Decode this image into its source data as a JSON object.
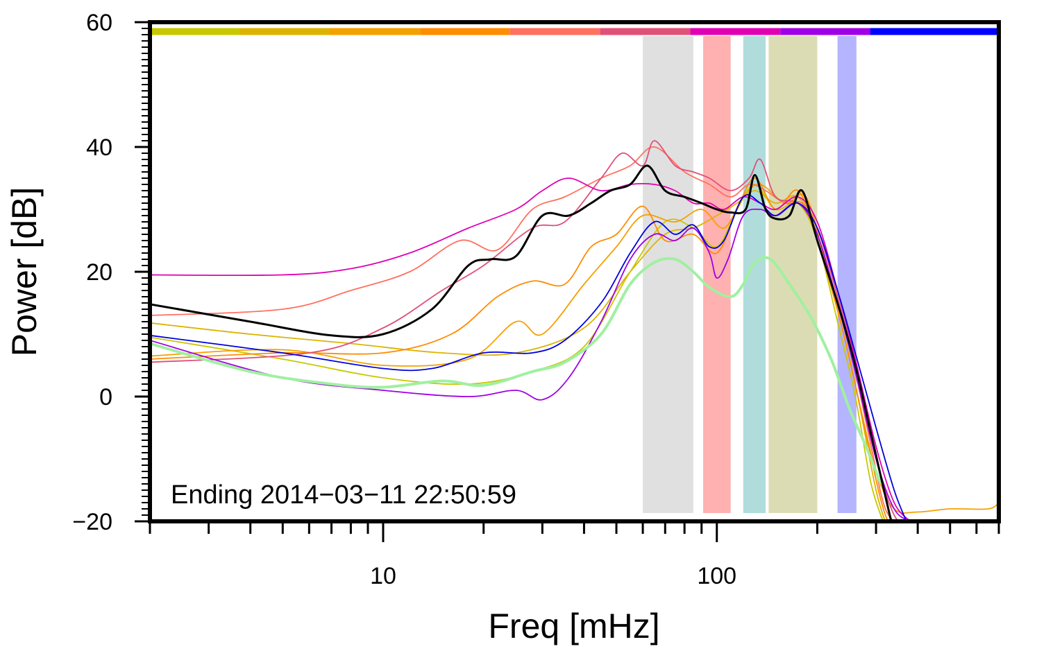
{
  "chart_data": {
    "type": "line",
    "title": "",
    "xlabel": "Freq [mHz]",
    "ylabel": "Power [dB]",
    "xscale": "log",
    "xlim": [
      2,
      700
    ],
    "ylim": [
      -20,
      60
    ],
    "grid": false,
    "legend": "none",
    "x_ticks": [
      {
        "value": 10,
        "label": "10"
      },
      {
        "value": 100,
        "label": "100"
      }
    ],
    "y_ticks": [
      {
        "value": -20,
        "label": "−20"
      },
      {
        "value": 0,
        "label": "0"
      },
      {
        "value": 20,
        "label": "20"
      },
      {
        "value": 40,
        "label": "40"
      },
      {
        "value": 60,
        "label": "60"
      }
    ],
    "annotation": "Ending 2014−03−11 22:50:59",
    "color_bar": {
      "y": 58.5,
      "segments": [
        {
          "from": 2.0,
          "to": 3.7,
          "color": "#c8c800"
        },
        {
          "from": 3.7,
          "to": 6.9,
          "color": "#dcb400"
        },
        {
          "from": 6.9,
          "to": 12.9,
          "color": "#f4a000"
        },
        {
          "from": 12.9,
          "to": 24.0,
          "color": "#ff8c00"
        },
        {
          "from": 24.0,
          "to": 44.7,
          "color": "#ff7060"
        },
        {
          "from": 44.7,
          "to": 83.2,
          "color": "#e05078"
        },
        {
          "from": 83.2,
          "to": 155.0,
          "color": "#e000b4"
        },
        {
          "from": 155.0,
          "to": 288.0,
          "color": "#a000e6"
        },
        {
          "from": 288.0,
          "to": 700.0,
          "color": "#0000ff"
        }
      ]
    },
    "bands": [
      {
        "from": 60,
        "to": 85,
        "color": "#e0e0e0"
      },
      {
        "from": 91,
        "to": 110,
        "color": "#ffb0b0"
      },
      {
        "from": 120,
        "to": 140,
        "color": "#b0dcdc"
      },
      {
        "from": 143,
        "to": 200,
        "color": "#dcdcb4"
      },
      {
        "from": 230,
        "to": 262,
        "color": "#b4b4ff"
      }
    ],
    "series": [
      {
        "color": "#dcb400",
        "width": 1.8,
        "points": [
          [
            2,
            11.8
          ],
          [
            4,
            10
          ],
          [
            8,
            8.5
          ],
          [
            15,
            7
          ],
          [
            25,
            7
          ],
          [
            40,
            11
          ],
          [
            55,
            20
          ],
          [
            70,
            26
          ],
          [
            85,
            27
          ],
          [
            100,
            29
          ],
          [
            115,
            31
          ],
          [
            130,
            33
          ],
          [
            150,
            31
          ],
          [
            175,
            32
          ],
          [
            200,
            26
          ],
          [
            230,
            14
          ],
          [
            260,
            2
          ],
          [
            300,
            -15
          ],
          [
            330,
            -22
          ]
        ]
      },
      {
        "color": "#c8c800",
        "width": 1.8,
        "points": [
          [
            2,
            9.5
          ],
          [
            5,
            6
          ],
          [
            10,
            3
          ],
          [
            18,
            2
          ],
          [
            28,
            4
          ],
          [
            40,
            8
          ],
          [
            55,
            20
          ],
          [
            70,
            28
          ],
          [
            85,
            27
          ],
          [
            100,
            24
          ],
          [
            115,
            30
          ],
          [
            130,
            34
          ],
          [
            150,
            30
          ],
          [
            175,
            31
          ],
          [
            200,
            25
          ],
          [
            230,
            12
          ],
          [
            260,
            0
          ],
          [
            290,
            -14
          ],
          [
            320,
            -21
          ]
        ]
      },
      {
        "color": "#f4a000",
        "width": 1.8,
        "points": [
          [
            2,
            6.5
          ],
          [
            5,
            7.5
          ],
          [
            10,
            5
          ],
          [
            18,
            6
          ],
          [
            25,
            12
          ],
          [
            30,
            10
          ],
          [
            40,
            18
          ],
          [
            50,
            24
          ],
          [
            60,
            29
          ],
          [
            75,
            28
          ],
          [
            90,
            30
          ],
          [
            105,
            27
          ],
          [
            120,
            32
          ],
          [
            135,
            34
          ],
          [
            160,
            31
          ],
          [
            185,
            32
          ],
          [
            210,
            22
          ],
          [
            240,
            10
          ],
          [
            270,
            -2
          ],
          [
            300,
            -12
          ],
          [
            340,
            -18
          ],
          [
            400,
            -18.5
          ],
          [
            500,
            -18
          ],
          [
            650,
            -18
          ],
          [
            700,
            -17
          ]
        ]
      },
      {
        "color": "#ff8c00",
        "width": 1.8,
        "points": [
          [
            2,
            6
          ],
          [
            5,
            7
          ],
          [
            10,
            7
          ],
          [
            16,
            10
          ],
          [
            22,
            16
          ],
          [
            28,
            18.5
          ],
          [
            35,
            18
          ],
          [
            42,
            24
          ],
          [
            50,
            26
          ],
          [
            60,
            30.5
          ],
          [
            70,
            25
          ],
          [
            85,
            26
          ],
          [
            100,
            23
          ],
          [
            115,
            30
          ],
          [
            130,
            35
          ],
          [
            150,
            30
          ],
          [
            175,
            33
          ],
          [
            200,
            25
          ],
          [
            240,
            10
          ],
          [
            280,
            -6
          ],
          [
            320,
            -19
          ],
          [
            360,
            -22
          ]
        ]
      },
      {
        "color": "#ff7060",
        "width": 1.8,
        "points": [
          [
            2,
            13
          ],
          [
            5,
            14
          ],
          [
            8,
            17
          ],
          [
            12,
            20
          ],
          [
            17,
            25
          ],
          [
            22,
            23.5
          ],
          [
            28,
            30
          ],
          [
            35,
            32
          ],
          [
            45,
            35
          ],
          [
            55,
            37
          ],
          [
            65,
            40
          ],
          [
            80,
            36
          ],
          [
            95,
            34
          ],
          [
            110,
            32
          ],
          [
            125,
            34
          ],
          [
            140,
            33
          ],
          [
            160,
            31
          ],
          [
            180,
            31
          ],
          [
            200,
            27
          ],
          [
            230,
            16
          ],
          [
            260,
            4
          ],
          [
            290,
            -8
          ],
          [
            320,
            -18
          ],
          [
            360,
            -21
          ]
        ]
      },
      {
        "color": "#e05078",
        "width": 1.8,
        "points": [
          [
            2,
            5.5
          ],
          [
            6,
            7
          ],
          [
            10,
            11
          ],
          [
            15,
            17
          ],
          [
            20,
            21
          ],
          [
            28,
            27
          ],
          [
            35,
            28
          ],
          [
            45,
            35
          ],
          [
            52,
            39
          ],
          [
            60,
            37
          ],
          [
            65,
            41
          ],
          [
            75,
            37
          ],
          [
            85,
            36
          ],
          [
            95,
            35
          ],
          [
            110,
            33
          ],
          [
            125,
            35
          ],
          [
            135,
            38
          ],
          [
            150,
            32
          ],
          [
            175,
            31
          ],
          [
            200,
            27
          ],
          [
            230,
            16
          ],
          [
            260,
            5
          ],
          [
            300,
            -10
          ],
          [
            340,
            -19
          ],
          [
            380,
            -21
          ]
        ]
      },
      {
        "color": "#e000b4",
        "width": 1.8,
        "points": [
          [
            2,
            19.5
          ],
          [
            5,
            19.5
          ],
          [
            8,
            20.5
          ],
          [
            12,
            23
          ],
          [
            18,
            27
          ],
          [
            25,
            30
          ],
          [
            30,
            33
          ],
          [
            36,
            35
          ],
          [
            45,
            33
          ],
          [
            55,
            34
          ],
          [
            65,
            34
          ],
          [
            75,
            33
          ],
          [
            85,
            31
          ],
          [
            95,
            31
          ],
          [
            105,
            30
          ],
          [
            120,
            32
          ],
          [
            135,
            31
          ],
          [
            150,
            30
          ],
          [
            175,
            32
          ],
          [
            200,
            28
          ],
          [
            230,
            17
          ],
          [
            260,
            6
          ],
          [
            300,
            -8
          ],
          [
            340,
            -17
          ],
          [
            380,
            -20
          ]
        ]
      },
      {
        "color": "#a000e6",
        "width": 1.8,
        "points": [
          [
            2,
            9
          ],
          [
            5,
            3
          ],
          [
            10,
            1
          ],
          [
            18,
            0
          ],
          [
            25,
            1
          ],
          [
            30,
            -0.5
          ],
          [
            36,
            3
          ],
          [
            45,
            12
          ],
          [
            55,
            22
          ],
          [
            65,
            26
          ],
          [
            75,
            25
          ],
          [
            85,
            27
          ],
          [
            95,
            23
          ],
          [
            100,
            19
          ],
          [
            108,
            22
          ],
          [
            120,
            29
          ],
          [
            135,
            30
          ],
          [
            150,
            29
          ],
          [
            175,
            31
          ],
          [
            200,
            26
          ],
          [
            230,
            15
          ],
          [
            260,
            4
          ],
          [
            300,
            -10
          ],
          [
            340,
            -18
          ],
          [
            380,
            -20
          ]
        ]
      },
      {
        "color": "#0000dc",
        "width": 1.8,
        "points": [
          [
            2,
            9.8
          ],
          [
            5,
            7
          ],
          [
            10,
            4.5
          ],
          [
            14,
            4.5
          ],
          [
            20,
            7
          ],
          [
            28,
            7
          ],
          [
            35,
            9
          ],
          [
            45,
            15
          ],
          [
            55,
            23
          ],
          [
            65,
            28
          ],
          [
            75,
            26
          ],
          [
            85,
            27.5
          ],
          [
            95,
            24
          ],
          [
            105,
            25
          ],
          [
            120,
            32
          ],
          [
            135,
            31
          ],
          [
            150,
            29
          ],
          [
            175,
            31
          ],
          [
            200,
            27
          ],
          [
            230,
            17
          ],
          [
            260,
            7
          ],
          [
            300,
            -5
          ],
          [
            340,
            -15
          ],
          [
            370,
            -20
          ]
        ]
      },
      {
        "color": "#a0f0a0",
        "width": 4,
        "points": [
          [
            2,
            8.5
          ],
          [
            4,
            4
          ],
          [
            7,
            2
          ],
          [
            10,
            1.5
          ],
          [
            15,
            2.5
          ],
          [
            20,
            1.8
          ],
          [
            28,
            4
          ],
          [
            35,
            5.5
          ],
          [
            45,
            10
          ],
          [
            55,
            18
          ],
          [
            65,
            21.5
          ],
          [
            75,
            22
          ],
          [
            85,
            20
          ],
          [
            95,
            17.5
          ],
          [
            110,
            16
          ],
          [
            120,
            18
          ],
          [
            130,
            21.5
          ],
          [
            145,
            22
          ],
          [
            165,
            18
          ],
          [
            190,
            13
          ],
          [
            220,
            6
          ],
          [
            250,
            -2
          ],
          [
            280,
            -8
          ],
          [
            310,
            -14
          ]
        ]
      },
      {
        "color": "#000000",
        "width": 3,
        "points": [
          [
            2,
            14.8
          ],
          [
            4,
            12
          ],
          [
            7,
            9.8
          ],
          [
            10,
            10
          ],
          [
            14,
            14
          ],
          [
            18,
            21
          ],
          [
            21,
            22
          ],
          [
            25,
            22.5
          ],
          [
            30,
            29
          ],
          [
            36,
            29
          ],
          [
            42,
            31
          ],
          [
            48,
            33
          ],
          [
            55,
            34
          ],
          [
            62,
            37
          ],
          [
            70,
            33
          ],
          [
            80,
            32
          ],
          [
            90,
            31
          ],
          [
            100,
            30
          ],
          [
            110,
            29.5
          ],
          [
            122,
            30
          ],
          [
            130,
            35.5
          ],
          [
            140,
            30
          ],
          [
            150,
            28.5
          ],
          [
            165,
            29
          ],
          [
            180,
            33
          ],
          [
            200,
            25
          ],
          [
            230,
            15
          ],
          [
            260,
            5
          ],
          [
            290,
            -6
          ],
          [
            320,
            -16
          ],
          [
            340,
            -22
          ]
        ]
      }
    ]
  }
}
